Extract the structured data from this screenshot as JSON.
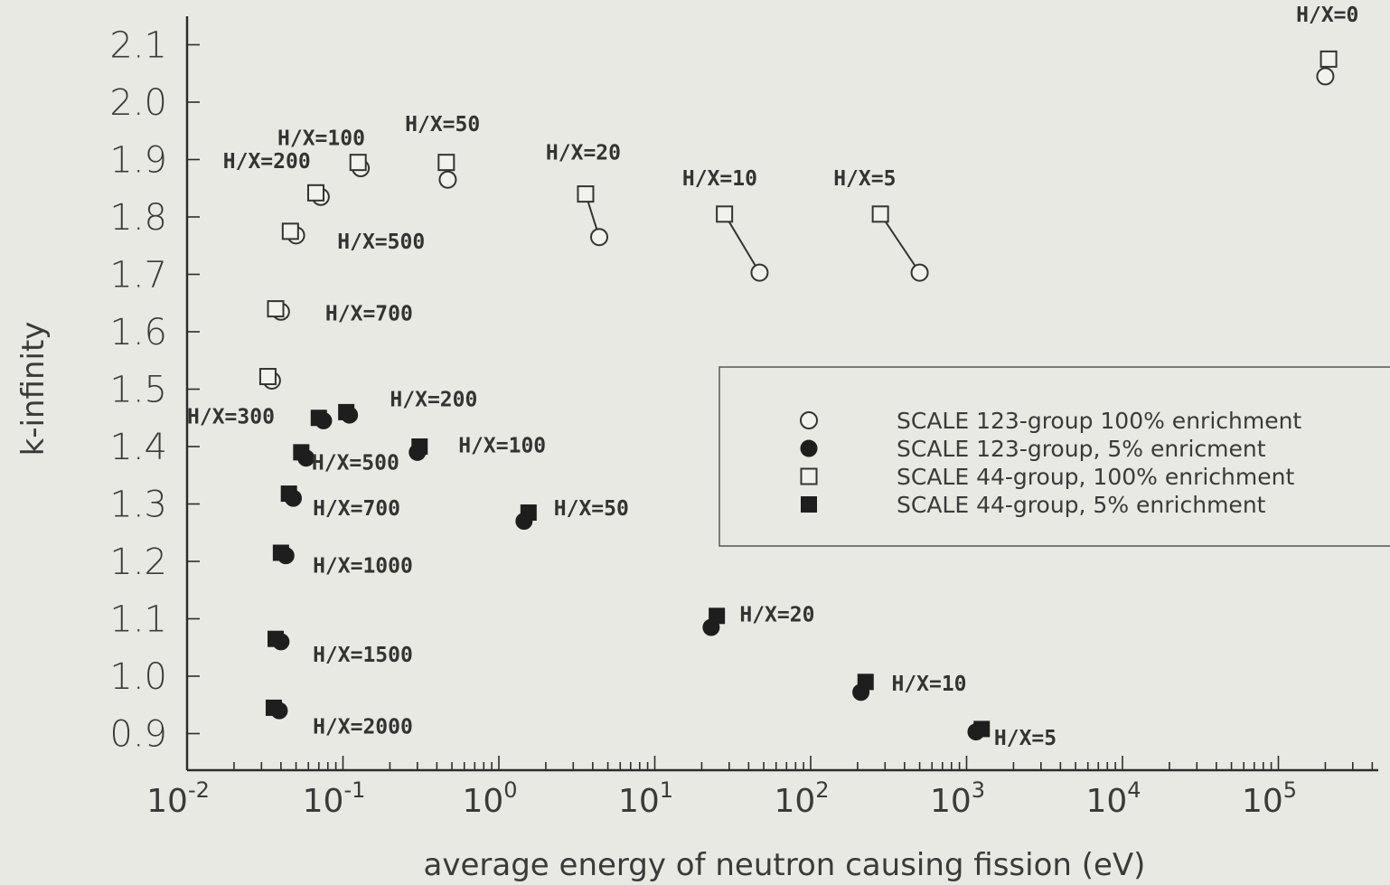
{
  "chart_data": {
    "type": "scatter",
    "xscale": "log",
    "xlim": [
      0.01,
      500000
    ],
    "ylim": [
      0.85,
      2.16
    ],
    "xlabel": "average energy of neutron causing fission (eV)",
    "ylabel": "k-infinity",
    "grid": false,
    "legend_position": "right",
    "x_ticks": [
      {
        "base": "10",
        "exp": "-2",
        "value": 0.01
      },
      {
        "base": "10",
        "exp": "-1",
        "value": 0.1
      },
      {
        "base": "10",
        "exp": "0",
        "value": 1
      },
      {
        "base": "10",
        "exp": "1",
        "value": 10
      },
      {
        "base": "10",
        "exp": "2",
        "value": 100
      },
      {
        "base": "10",
        "exp": "3",
        "value": 1000
      },
      {
        "base": "10",
        "exp": "4",
        "value": 10000
      },
      {
        "base": "10",
        "exp": "5",
        "value": 100000
      }
    ],
    "y_ticks": [
      "0.9",
      "1.0",
      "1.1",
      "1.2",
      "1.3",
      "1.4",
      "1.5",
      "1.6",
      "1.7",
      "1.8",
      "1.9",
      "2.0",
      "2.1"
    ],
    "series": [
      {
        "name": "SCALE 123-group 100% enrichment",
        "marker": "open-circle",
        "points": [
          {
            "x": 200000,
            "y": 2.045
          },
          {
            "x": 0.47,
            "y": 1.865
          },
          {
            "x": 0.13,
            "y": 1.885
          },
          {
            "x": 0.072,
            "y": 1.835
          },
          {
            "x": 0.05,
            "y": 1.768
          },
          {
            "x": 0.04,
            "y": 1.635
          },
          {
            "x": 0.035,
            "y": 1.515
          },
          {
            "x": 4.4,
            "y": 1.765
          },
          {
            "x": 47,
            "y": 1.703
          },
          {
            "x": 500,
            "y": 1.703
          }
        ]
      },
      {
        "name": "SCALE 123-group,   5% enricment",
        "marker": "filled-circle",
        "points": [
          {
            "x": 0.075,
            "y": 1.445
          },
          {
            "x": 0.11,
            "y": 1.455
          },
          {
            "x": 0.3,
            "y": 1.39
          },
          {
            "x": 0.058,
            "y": 1.38
          },
          {
            "x": 0.048,
            "y": 1.31
          },
          {
            "x": 0.043,
            "y": 1.21
          },
          {
            "x": 0.04,
            "y": 1.06
          },
          {
            "x": 0.039,
            "y": 0.94
          },
          {
            "x": 1.45,
            "y": 1.27
          },
          {
            "x": 23,
            "y": 1.085
          },
          {
            "x": 210,
            "y": 0.972
          },
          {
            "x": 1150,
            "y": 0.903
          }
        ]
      },
      {
        "name": "SCALE 44-group, 100% enrichment",
        "marker": "open-square",
        "points": [
          {
            "x": 210000,
            "y": 2.075
          },
          {
            "x": 0.46,
            "y": 1.895
          },
          {
            "x": 0.125,
            "y": 1.895
          },
          {
            "x": 0.067,
            "y": 1.842
          },
          {
            "x": 0.046,
            "y": 1.775
          },
          {
            "x": 0.037,
            "y": 1.64
          },
          {
            "x": 0.033,
            "y": 1.522
          },
          {
            "x": 3.6,
            "y": 1.84
          },
          {
            "x": 28,
            "y": 1.805
          },
          {
            "x": 280,
            "y": 1.805
          }
        ]
      },
      {
        "name": "SCALE 44-group, 5% enrichment",
        "marker": "filled-square",
        "points": [
          {
            "x": 0.07,
            "y": 1.45
          },
          {
            "x": 0.105,
            "y": 1.46
          },
          {
            "x": 0.31,
            "y": 1.4
          },
          {
            "x": 0.054,
            "y": 1.39
          },
          {
            "x": 0.045,
            "y": 1.318
          },
          {
            "x": 0.04,
            "y": 1.215
          },
          {
            "x": 0.037,
            "y": 1.065
          },
          {
            "x": 0.036,
            "y": 0.945
          },
          {
            "x": 1.55,
            "y": 1.285
          },
          {
            "x": 25,
            "y": 1.105
          },
          {
            "x": 225,
            "y": 0.99
          },
          {
            "x": 1250,
            "y": 0.908
          }
        ]
      }
    ],
    "annotations": [
      {
        "text": "H/X=0",
        "x": 130000,
        "y": 2.14
      },
      {
        "text": "H/X=100",
        "x": 0.038,
        "y": 1.925
      },
      {
        "text": "H/X=50",
        "x": 0.25,
        "y": 1.95
      },
      {
        "text": "H/X=200",
        "x": 0.017,
        "y": 1.885
      },
      {
        "text": "H/X=20",
        "x": 2.0,
        "y": 1.9
      },
      {
        "text": "H/X=10",
        "x": 15,
        "y": 1.855
      },
      {
        "text": "H/X=5",
        "x": 140,
        "y": 1.855
      },
      {
        "text": "H/X=500",
        "x": 0.092,
        "y": 1.745
      },
      {
        "text": "H/X=700",
        "x": 0.077,
        "y": 1.62
      },
      {
        "text": "H/X=200",
        "x": 0.2,
        "y": 1.47
      },
      {
        "text": "H/X=300",
        "x": 0.01,
        "y": 1.44
      },
      {
        "text": "H/X=100",
        "x": 0.55,
        "y": 1.39
      },
      {
        "text": "H/X=500",
        "x": 0.063,
        "y": 1.36
      },
      {
        "text": "H/X=700",
        "x": 0.064,
        "y": 1.28
      },
      {
        "text": "H/X=50",
        "x": 2.25,
        "y": 1.28
      },
      {
        "text": "H/X=1000",
        "x": 0.064,
        "y": 1.18
      },
      {
        "text": "H/X=20",
        "x": 35,
        "y": 1.095
      },
      {
        "text": "H/X=1500",
        "x": 0.064,
        "y": 1.025
      },
      {
        "text": "H/X=10",
        "x": 330,
        "y": 0.975
      },
      {
        "text": "H/X=2000",
        "x": 0.064,
        "y": 0.9
      },
      {
        "text": "H/X=5",
        "x": 1500,
        "y": 0.88
      }
    ],
    "connectors": [
      {
        "x1": 3.6,
        "y1": 1.84,
        "x2": 4.4,
        "y2": 1.765
      },
      {
        "x1": 28,
        "y1": 1.805,
        "x2": 47,
        "y2": 1.703
      },
      {
        "x1": 280,
        "y1": 1.805,
        "x2": 500,
        "y2": 1.703
      }
    ]
  }
}
